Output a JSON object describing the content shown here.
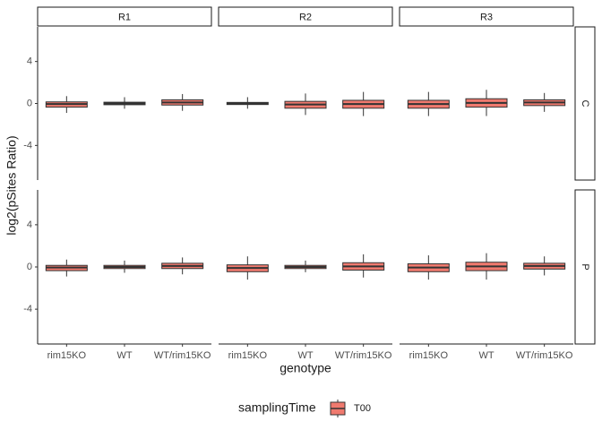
{
  "chart_data": {
    "type": "box",
    "facets": {
      "columns": [
        "R1",
        "R2",
        "R3"
      ],
      "rows": [
        "C",
        "P"
      ]
    },
    "categories": [
      "rim15KO",
      "WT",
      "WT/rim15KO"
    ],
    "xlabel": "genotype",
    "ylabel": "log2(pSites Ratio)",
    "ylim": [
      -7.3,
      7.3
    ],
    "yticks": [
      -4,
      0,
      4
    ],
    "legend": {
      "title": "samplingTime",
      "entries": [
        "T00"
      ],
      "position": "bottom"
    },
    "fill_color": "#f07a6f",
    "line_color": "#333333",
    "panels": [
      {
        "col": "R1",
        "row": "C",
        "boxes": [
          {
            "category": "rim15KO",
            "whisker_low": -0.9,
            "q1": -0.35,
            "median": -0.05,
            "q3": 0.15,
            "whisker_high": 0.7
          },
          {
            "category": "WT",
            "whisker_low": -0.5,
            "q1": -0.12,
            "median": 0.0,
            "q3": 0.12,
            "whisker_high": 0.6
          },
          {
            "category": "WT/rim15KO",
            "whisker_low": -0.7,
            "q1": -0.15,
            "median": 0.1,
            "q3": 0.35,
            "whisker_high": 0.9
          }
        ]
      },
      {
        "col": "R2",
        "row": "C",
        "boxes": [
          {
            "category": "rim15KO",
            "whisker_low": -0.5,
            "q1": -0.1,
            "median": 0.0,
            "q3": 0.1,
            "whisker_high": 0.6
          },
          {
            "category": "WT",
            "whisker_low": -1.1,
            "q1": -0.45,
            "median": -0.1,
            "q3": 0.2,
            "whisker_high": 0.95
          },
          {
            "category": "WT/rim15KO",
            "whisker_low": -1.2,
            "q1": -0.45,
            "median": -0.05,
            "q3": 0.3,
            "whisker_high": 1.1
          }
        ]
      },
      {
        "col": "R3",
        "row": "C",
        "boxes": [
          {
            "category": "rim15KO",
            "whisker_low": -1.2,
            "q1": -0.45,
            "median": -0.05,
            "q3": 0.3,
            "whisker_high": 1.1
          },
          {
            "category": "WT",
            "whisker_low": -1.2,
            "q1": -0.35,
            "median": 0.05,
            "q3": 0.45,
            "whisker_high": 1.3
          },
          {
            "category": "WT/rim15KO",
            "whisker_low": -0.8,
            "q1": -0.2,
            "median": 0.1,
            "q3": 0.35,
            "whisker_high": 1.0
          }
        ]
      },
      {
        "col": "R1",
        "row": "P",
        "boxes": [
          {
            "category": "rim15KO",
            "whisker_low": -0.9,
            "q1": -0.35,
            "median": -0.05,
            "q3": 0.15,
            "whisker_high": 0.7
          },
          {
            "category": "WT",
            "whisker_low": -0.55,
            "q1": -0.15,
            "median": 0.0,
            "q3": 0.15,
            "whisker_high": 0.6
          },
          {
            "category": "WT/rim15KO",
            "whisker_low": -0.7,
            "q1": -0.15,
            "median": 0.1,
            "q3": 0.35,
            "whisker_high": 0.9
          }
        ]
      },
      {
        "col": "R2",
        "row": "P",
        "boxes": [
          {
            "category": "rim15KO",
            "whisker_low": -1.2,
            "q1": -0.45,
            "median": -0.1,
            "q3": 0.2,
            "whisker_high": 1.0
          },
          {
            "category": "WT",
            "whisker_low": -0.5,
            "q1": -0.15,
            "median": 0.0,
            "q3": 0.15,
            "whisker_high": 0.6
          },
          {
            "category": "WT/rim15KO",
            "whisker_low": -1.0,
            "q1": -0.3,
            "median": 0.05,
            "q3": 0.4,
            "whisker_high": 1.2
          }
        ]
      },
      {
        "col": "R3",
        "row": "P",
        "boxes": [
          {
            "category": "rim15KO",
            "whisker_low": -1.2,
            "q1": -0.45,
            "median": -0.05,
            "q3": 0.3,
            "whisker_high": 1.1
          },
          {
            "category": "WT",
            "whisker_low": -1.2,
            "q1": -0.35,
            "median": 0.05,
            "q3": 0.45,
            "whisker_high": 1.3
          },
          {
            "category": "WT/rim15KO",
            "whisker_low": -0.8,
            "q1": -0.2,
            "median": 0.1,
            "q3": 0.35,
            "whisker_high": 1.0
          }
        ]
      }
    ]
  }
}
